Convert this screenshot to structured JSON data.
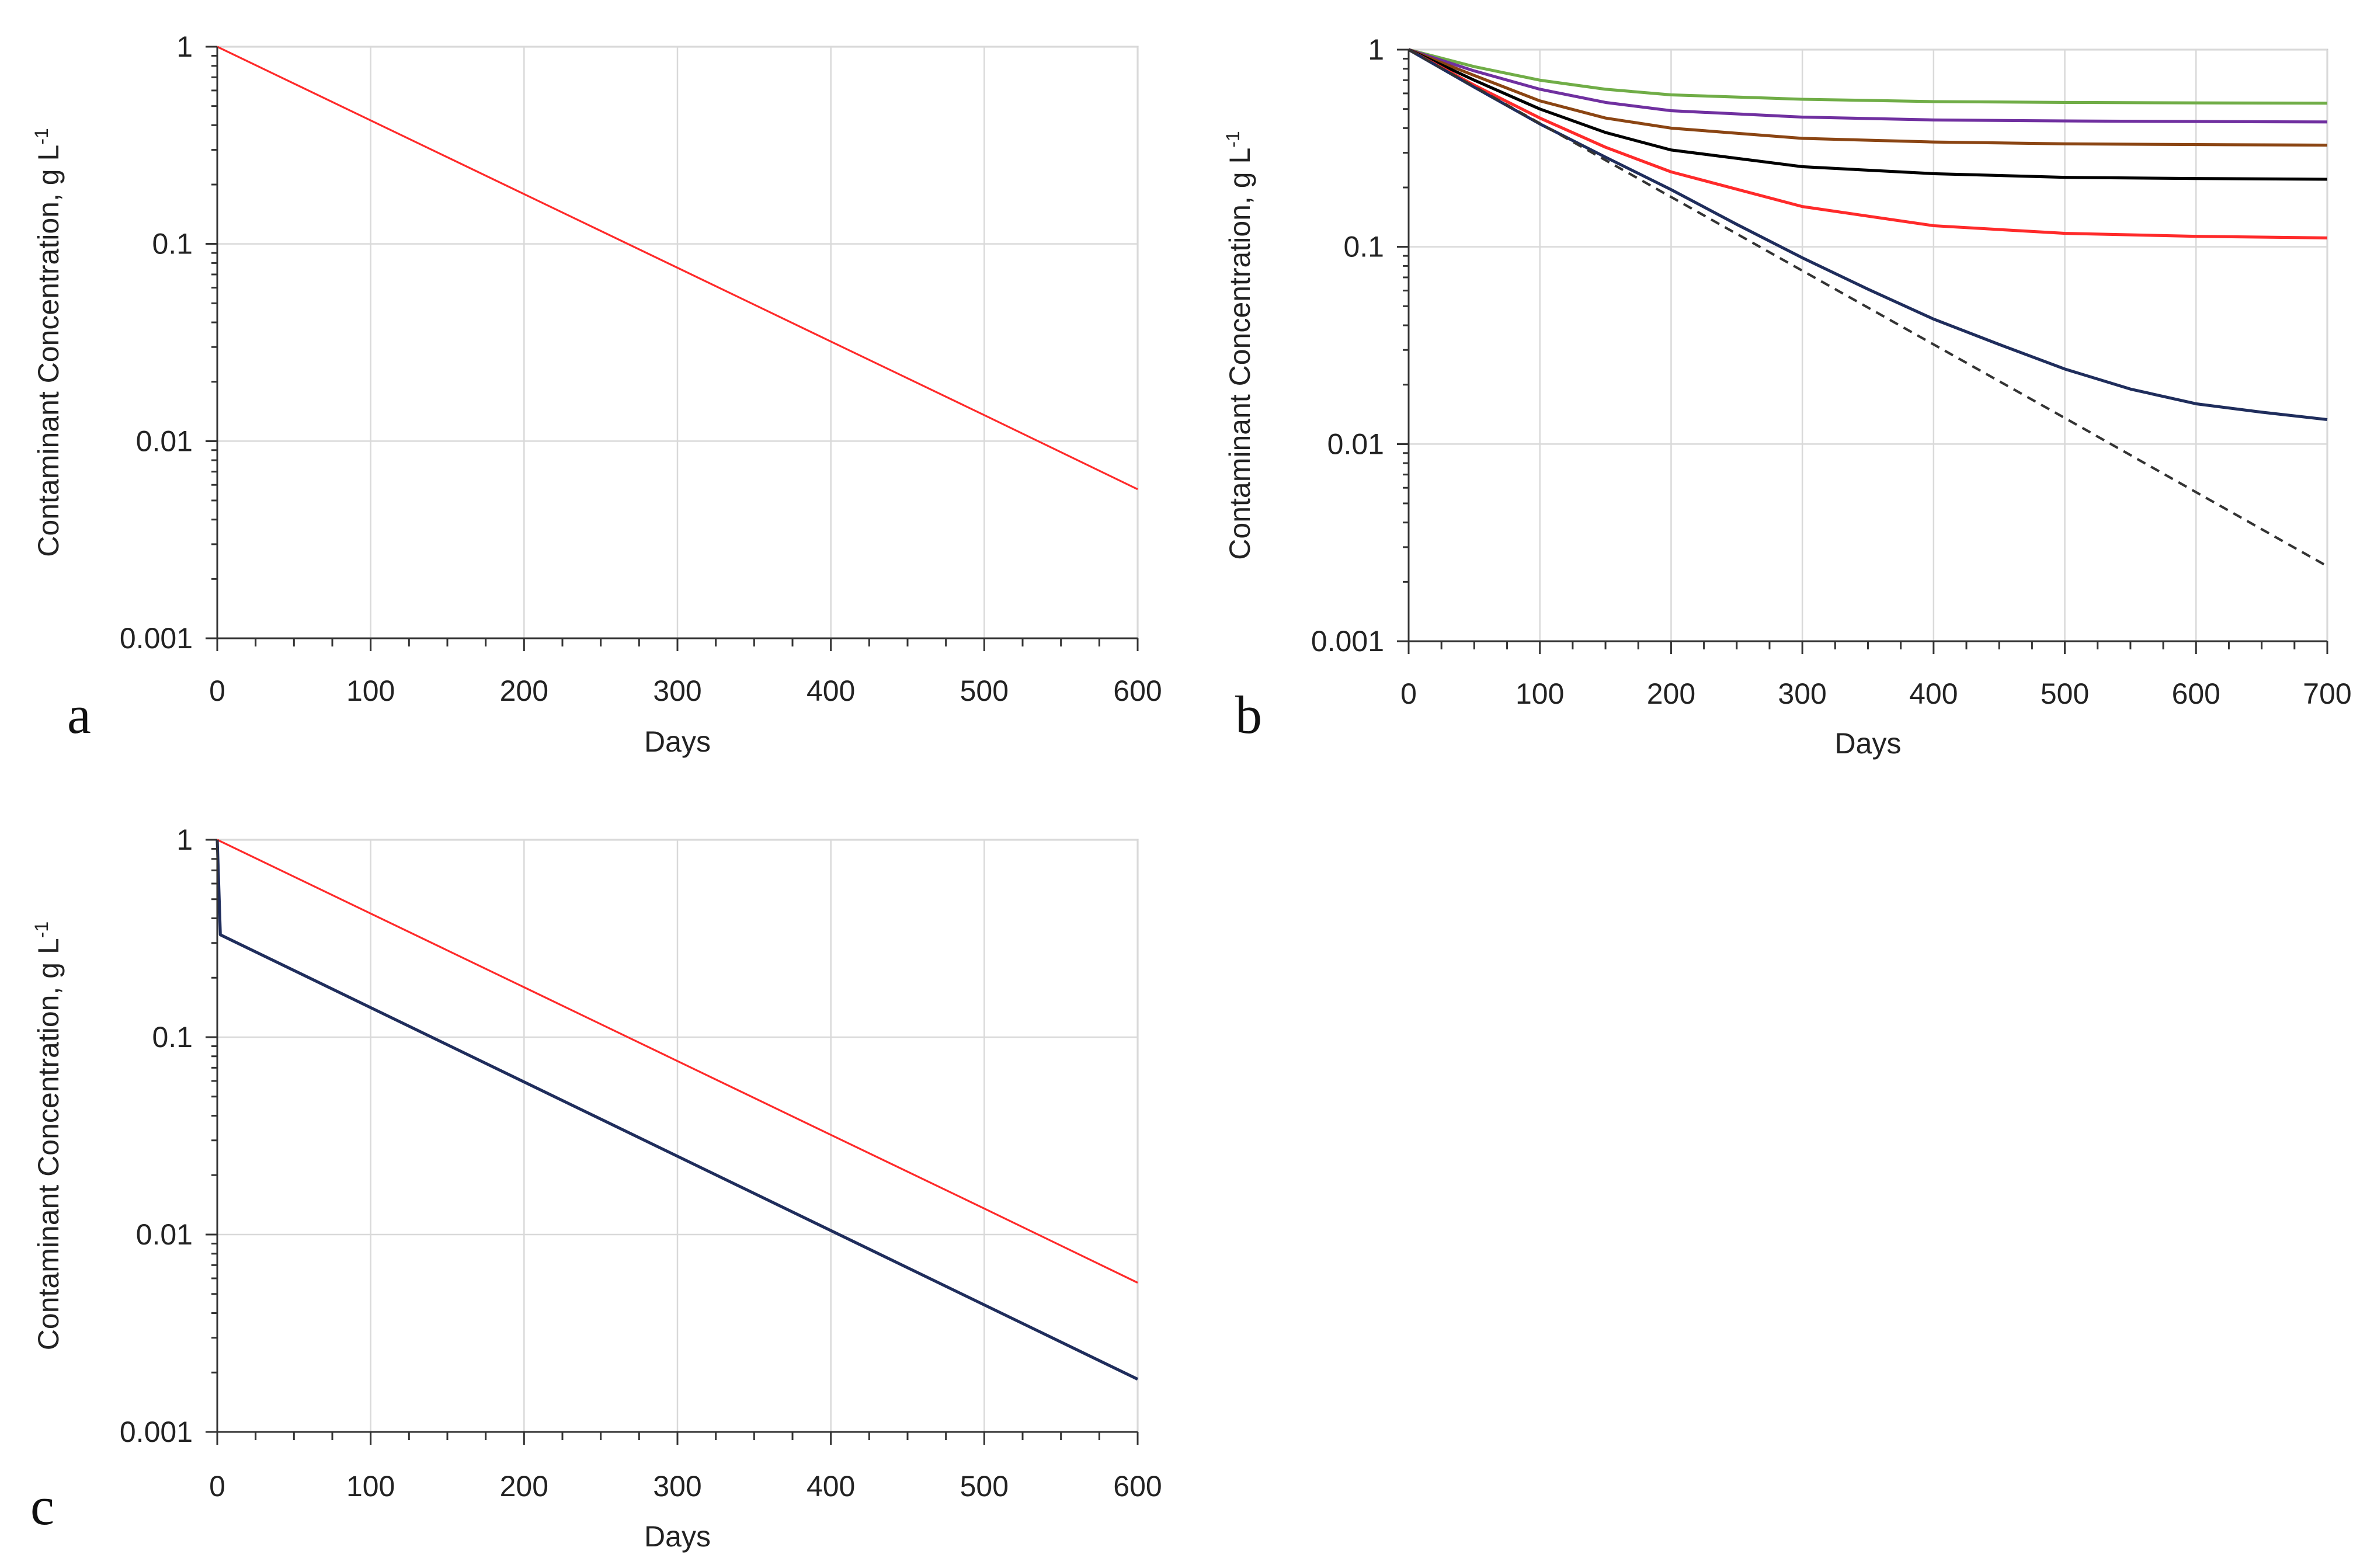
{
  "colors": {
    "red": "#ff2a2a",
    "navy": "#1f2d5c",
    "green": "#70ad47",
    "purple": "#7030a0",
    "brown": "#8b4513",
    "black": "#000000",
    "dashed": "#333333"
  },
  "chart_data": [
    {
      "panel": "a",
      "type": "line",
      "xlabel": "Days",
      "ylabel": "Contaminant Concentration, g L",
      "ylabel_sup": "-1",
      "yscale": "log",
      "xlim": [
        0,
        600
      ],
      "ylim": [
        0.001,
        1
      ],
      "xticks": [
        0,
        100,
        200,
        300,
        400,
        500,
        600
      ],
      "xtick_labels": [
        "0",
        "100",
        "200",
        "300",
        "400",
        "500",
        "600"
      ],
      "yticks": [
        0.001,
        0.01,
        0.1,
        1
      ],
      "ytick_labels": [
        "0.001",
        "0.01",
        "0.1",
        "1"
      ],
      "series": [
        {
          "name": "red",
          "color": "#ff2a2a",
          "width": 1,
          "dashed": false,
          "x": [
            0,
            100,
            200,
            300,
            400,
            500,
            600
          ],
          "y": [
            1,
            0.423,
            0.179,
            0.0757,
            0.032,
            0.01355,
            0.0057
          ]
        }
      ]
    },
    {
      "panel": "b",
      "type": "line",
      "xlabel": "Days",
      "ylabel": "Contaminant Concentration, g L",
      "ylabel_sup": "-1",
      "yscale": "log",
      "xlim": [
        0,
        700
      ],
      "ylim": [
        0.001,
        1
      ],
      "xticks": [
        0,
        100,
        200,
        300,
        400,
        500,
        600,
        700
      ],
      "xtick_labels": [
        "0",
        "100",
        "200",
        "300",
        "400",
        "500",
        "600",
        "700"
      ],
      "yticks": [
        0.001,
        0.01,
        0.1,
        1
      ],
      "ytick_labels": [
        "0.001",
        "0.01",
        "0.1",
        "1"
      ],
      "series": [
        {
          "name": "green",
          "color": "#70ad47",
          "width": 1.6,
          "dashed": false,
          "x": [
            0,
            50,
            100,
            150,
            200,
            300,
            400,
            500,
            600,
            700
          ],
          "y": [
            1,
            0.82,
            0.7,
            0.63,
            0.59,
            0.56,
            0.545,
            0.54,
            0.537,
            0.535
          ]
        },
        {
          "name": "purple",
          "color": "#7030a0",
          "width": 1.6,
          "dashed": false,
          "x": [
            0,
            50,
            100,
            150,
            200,
            300,
            400,
            500,
            600,
            700
          ],
          "y": [
            1,
            0.78,
            0.63,
            0.54,
            0.49,
            0.455,
            0.44,
            0.435,
            0.432,
            0.43
          ]
        },
        {
          "name": "brown",
          "color": "#8b4513",
          "width": 1.6,
          "dashed": false,
          "x": [
            0,
            50,
            100,
            150,
            200,
            300,
            400,
            500,
            600,
            700
          ],
          "y": [
            1,
            0.74,
            0.55,
            0.45,
            0.4,
            0.355,
            0.34,
            0.333,
            0.33,
            0.328
          ]
        },
        {
          "name": "black",
          "color": "#000000",
          "width": 1.6,
          "dashed": false,
          "x": [
            0,
            50,
            100,
            150,
            200,
            300,
            400,
            500,
            600,
            700
          ],
          "y": [
            1,
            0.7,
            0.5,
            0.38,
            0.31,
            0.255,
            0.235,
            0.225,
            0.222,
            0.22
          ]
        },
        {
          "name": "red",
          "color": "#ff2a2a",
          "width": 1.6,
          "dashed": false,
          "x": [
            0,
            50,
            100,
            150,
            200,
            300,
            400,
            500,
            600,
            700
          ],
          "y": [
            1,
            0.66,
            0.45,
            0.32,
            0.24,
            0.16,
            0.128,
            0.117,
            0.113,
            0.111
          ]
        },
        {
          "name": "navy",
          "color": "#1f2d5c",
          "width": 1.6,
          "dashed": false,
          "x": [
            0,
            50,
            100,
            150,
            200,
            250,
            300,
            350,
            400,
            450,
            500,
            550,
            600,
            650,
            700
          ],
          "y": [
            1,
            0.645,
            0.42,
            0.285,
            0.195,
            0.13,
            0.088,
            0.061,
            0.043,
            0.032,
            0.024,
            0.019,
            0.016,
            0.0145,
            0.0133
          ]
        },
        {
          "name": "dashed",
          "color": "#333333",
          "width": 1.3,
          "dashed": true,
          "x": [
            0,
            100,
            200,
            300,
            400,
            500,
            600,
            700
          ],
          "y": [
            1,
            0.423,
            0.179,
            0.0757,
            0.032,
            0.01355,
            0.0057,
            0.0024
          ]
        }
      ]
    },
    {
      "panel": "c",
      "type": "line",
      "xlabel": "Days",
      "ylabel": "Contaminant Concentration, g L",
      "ylabel_sup": "-1",
      "yscale": "log",
      "xlim": [
        0,
        600
      ],
      "ylim": [
        0.001,
        1
      ],
      "xticks": [
        0,
        100,
        200,
        300,
        400,
        500,
        600
      ],
      "xtick_labels": [
        "0",
        "100",
        "200",
        "300",
        "400",
        "500",
        "600"
      ],
      "yticks": [
        0.001,
        0.01,
        0.1,
        1
      ],
      "ytick_labels": [
        "0.001",
        "0.01",
        "0.1",
        "1"
      ],
      "series": [
        {
          "name": "red",
          "color": "#ff2a2a",
          "width": 1,
          "dashed": false,
          "x": [
            0,
            100,
            200,
            300,
            400,
            500,
            600
          ],
          "y": [
            1,
            0.423,
            0.179,
            0.0757,
            0.032,
            0.01355,
            0.0057
          ]
        },
        {
          "name": "navy",
          "color": "#1f2d5c",
          "width": 1.6,
          "dashed": false,
          "x": [
            0,
            2,
            600
          ],
          "y": [
            1,
            0.33,
            0.00185
          ]
        }
      ]
    }
  ]
}
